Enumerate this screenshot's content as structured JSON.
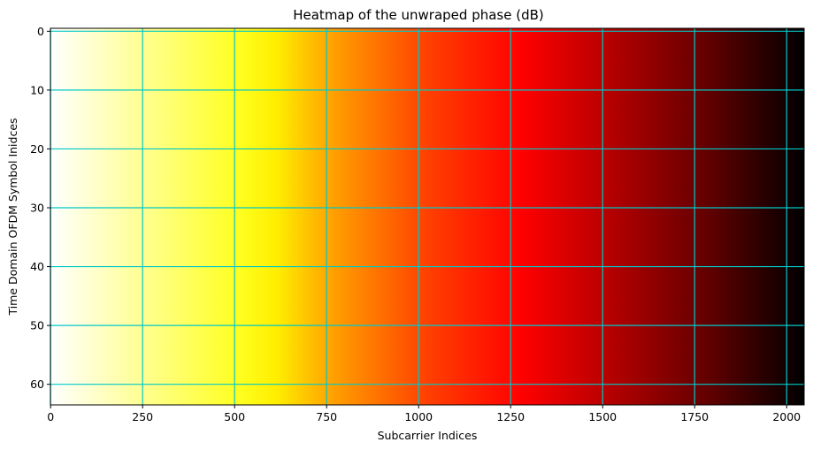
{
  "chart_data": {
    "type": "heatmap",
    "title": "Heatmap of the unwraped phase (dB)",
    "xlabel": "Subcarrier Indices",
    "ylabel": "Time Domain OFDM Symbol Inidces",
    "xlim": [
      0,
      2048
    ],
    "ylim": [
      64,
      0
    ],
    "xticks": [
      0,
      250,
      500,
      750,
      1000,
      1250,
      1500,
      1750,
      2000
    ],
    "yticks": [
      0,
      10,
      20,
      30,
      40,
      50,
      60
    ],
    "colormap": "hot_r",
    "value_trend": "values increase monotonically with subcarrier index; constant across OFDM symbol indices",
    "grid": true,
    "grid_color": "#00c8c8"
  }
}
